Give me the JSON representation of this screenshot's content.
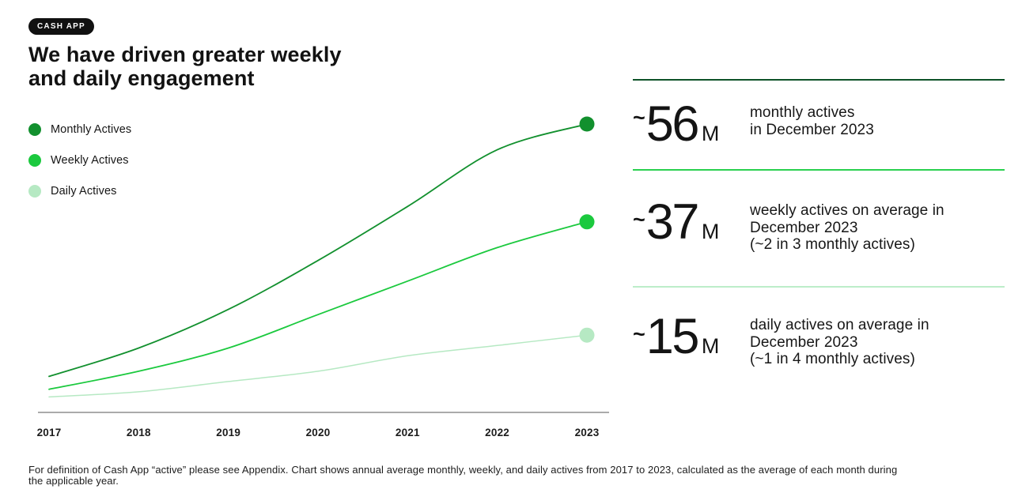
{
  "header": {
    "badge": "CASH APP",
    "title_line1": "We have driven greater weekly",
    "title_line2": "and daily engagement"
  },
  "legend": {
    "items": [
      {
        "label": "Monthly Actives",
        "color": "#12902e"
      },
      {
        "label": "Weekly Actives",
        "color": "#1bc93e"
      },
      {
        "label": "Daily Actives",
        "color": "#b6e9c3"
      }
    ]
  },
  "chart_data": {
    "type": "line",
    "title": "Cash App annual average actives (millions), 2017 to 2023",
    "categories": [
      "2017",
      "2018",
      "2019",
      "2020",
      "2021",
      "2022",
      "2023"
    ],
    "series": [
      {
        "name": "Monthly Actives",
        "color": "#12902e",
        "values": [
          7,
          12.5,
          20,
          29.5,
          40,
          51,
          56
        ]
      },
      {
        "name": "Weekly Actives",
        "color": "#1bc93e",
        "values": [
          4.5,
          8,
          12.5,
          19,
          25.5,
          32,
          37
        ]
      },
      {
        "name": "Daily Actives",
        "color": "#b6e9c3",
        "values": [
          3,
          4,
          6,
          8,
          11,
          13,
          15
        ]
      }
    ],
    "ylim": [
      0,
      60
    ],
    "grid": false,
    "legend_position": "upper-left",
    "end_point_markers": true,
    "axis_color": "#8f8f8f"
  },
  "stats": {
    "items": [
      {
        "divider_color": "#0d5228",
        "approx": "~",
        "value": "56",
        "unit": "M",
        "lines": [
          "monthly actives",
          "in December 2023",
          ""
        ]
      },
      {
        "divider_color": "#2ad04f",
        "approx": "~",
        "value": "37",
        "unit": "M",
        "lines": [
          "weekly actives on average in",
          "December 2023",
          "(~2 in 3 monthly actives)"
        ]
      },
      {
        "divider_color": "#bcedc9",
        "approx": "~",
        "value": "15",
        "unit": "M",
        "lines": [
          "daily actives on average in",
          "December 2023",
          "(~1 in 4 monthly actives)"
        ]
      }
    ]
  },
  "footnote": {
    "text": "For definition of Cash App “active” please see Appendix. Chart shows annual average monthly, weekly, and daily actives from 2017 to 2023, calculated as the average of each month during the applicable year."
  }
}
